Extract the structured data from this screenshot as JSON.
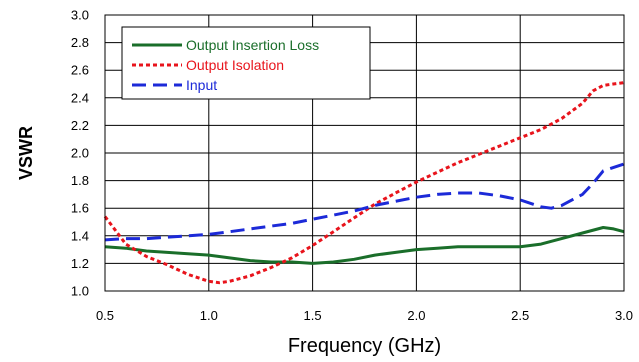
{
  "chart_data": {
    "type": "line",
    "title": "",
    "xlabel": "Frequency (GHz)",
    "ylabel": "VSWR",
    "xlim": [
      0.5,
      3.0
    ],
    "ylim": [
      1.0,
      3.0
    ],
    "xticks": [
      "0.5",
      "1.0",
      "1.5",
      "2.0",
      "2.5",
      "3.0"
    ],
    "yticks": [
      "1.0",
      "1.2",
      "1.4",
      "1.6",
      "1.8",
      "2.0",
      "2.2",
      "2.4",
      "2.6",
      "2.8",
      "3.0"
    ],
    "grid": true,
    "legend_position": "top-left",
    "series": [
      {
        "name": "Output Insertion Loss",
        "color": "#1a6e2a",
        "dash": "solid",
        "x": [
          0.5,
          0.6,
          0.7,
          0.8,
          0.9,
          1.0,
          1.1,
          1.2,
          1.3,
          1.4,
          1.5,
          1.6,
          1.7,
          1.8,
          1.9,
          2.0,
          2.1,
          2.2,
          2.3,
          2.4,
          2.5,
          2.6,
          2.7,
          2.8,
          2.9,
          2.95,
          3.0
        ],
        "y": [
          1.32,
          1.31,
          1.29,
          1.28,
          1.27,
          1.26,
          1.24,
          1.22,
          1.21,
          1.21,
          1.2,
          1.21,
          1.23,
          1.26,
          1.28,
          1.3,
          1.31,
          1.32,
          1.32,
          1.32,
          1.32,
          1.34,
          1.38,
          1.42,
          1.46,
          1.45,
          1.43
        ]
      },
      {
        "name": "Output Isolation",
        "color": "#e8141c",
        "dash": "short",
        "x": [
          0.5,
          0.55,
          0.6,
          0.7,
          0.8,
          0.9,
          1.0,
          1.05,
          1.1,
          1.2,
          1.3,
          1.4,
          1.5,
          1.6,
          1.7,
          1.8,
          1.9,
          2.0,
          2.1,
          2.2,
          2.3,
          2.4,
          2.5,
          2.6,
          2.7,
          2.8,
          2.85,
          2.9,
          3.0
        ],
        "y": [
          1.54,
          1.44,
          1.34,
          1.25,
          1.19,
          1.12,
          1.07,
          1.06,
          1.07,
          1.11,
          1.17,
          1.24,
          1.33,
          1.43,
          1.53,
          1.63,
          1.71,
          1.79,
          1.86,
          1.93,
          1.99,
          2.05,
          2.11,
          2.17,
          2.25,
          2.36,
          2.45,
          2.49,
          2.51
        ]
      },
      {
        "name": "Input",
        "color": "#1c2ad8",
        "dash": "long",
        "x": [
          0.5,
          0.6,
          0.7,
          0.8,
          0.9,
          1.0,
          1.1,
          1.2,
          1.3,
          1.4,
          1.5,
          1.6,
          1.7,
          1.8,
          1.9,
          2.0,
          2.1,
          2.2,
          2.3,
          2.4,
          2.5,
          2.6,
          2.65,
          2.7,
          2.8,
          2.85,
          2.9,
          3.0
        ],
        "y": [
          1.37,
          1.38,
          1.38,
          1.39,
          1.4,
          1.41,
          1.43,
          1.45,
          1.47,
          1.49,
          1.52,
          1.55,
          1.58,
          1.62,
          1.65,
          1.68,
          1.7,
          1.71,
          1.71,
          1.69,
          1.66,
          1.61,
          1.6,
          1.62,
          1.7,
          1.78,
          1.87,
          1.92
        ]
      }
    ]
  }
}
